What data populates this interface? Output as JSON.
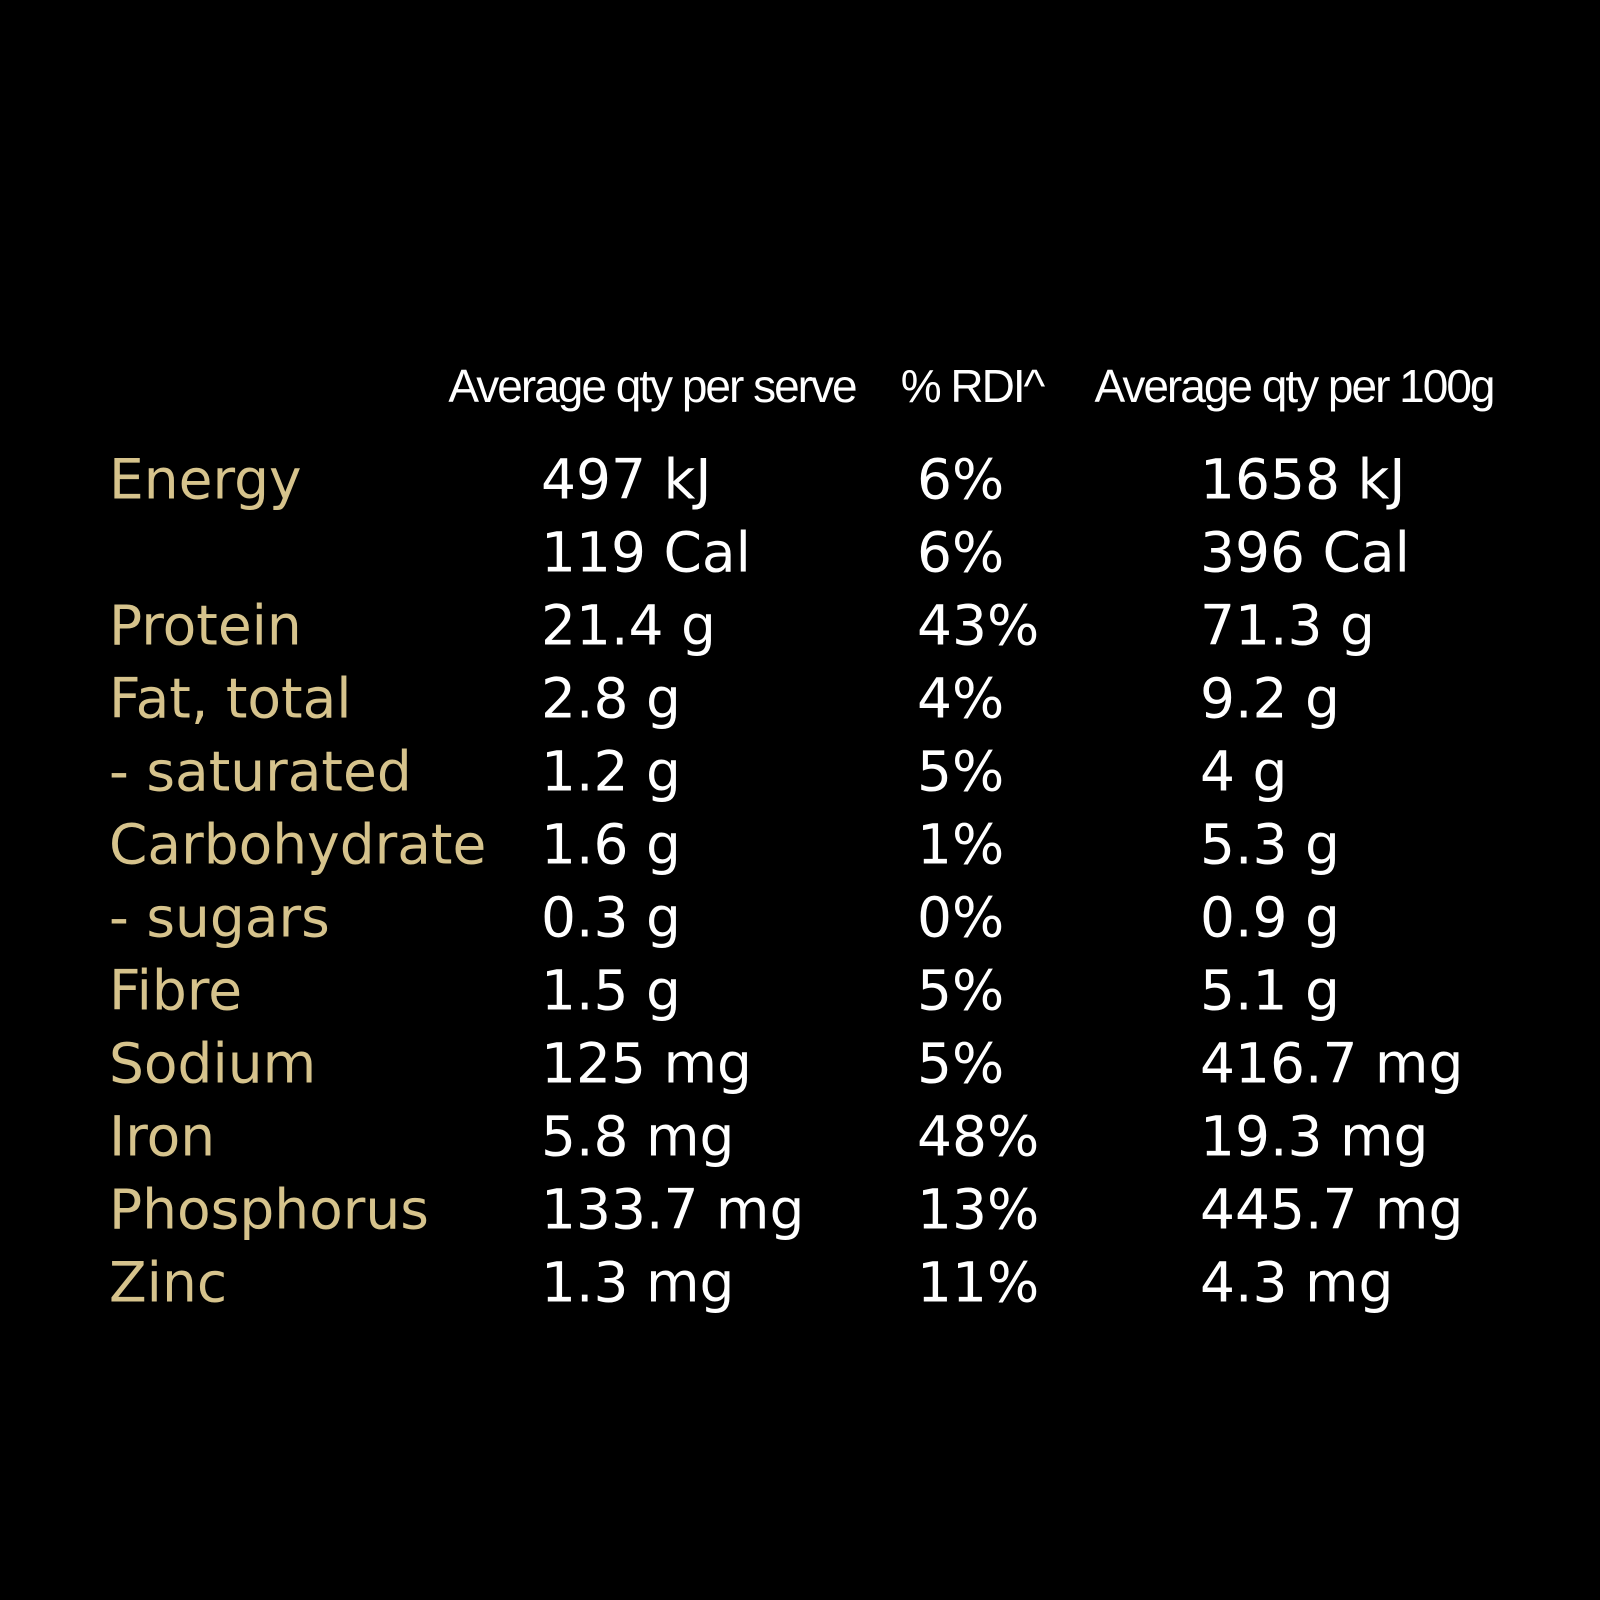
{
  "table": {
    "headers": [
      "Average qty per serve",
      "% RDI^",
      "Average qty per 100g"
    ],
    "rows": [
      {
        "label": "Energy",
        "cells": [
          "497 kJ",
          "6%",
          "1658 kJ"
        ]
      },
      {
        "cells": [
          "119 Cal",
          "6%",
          "396 Cal"
        ]
      },
      {
        "label": "Protein",
        "cells": [
          "21.4 g",
          "43%",
          "71.3 g"
        ]
      },
      {
        "label": "Fat, total",
        "cells": [
          "2.8 g",
          "4%",
          "9.2 g"
        ]
      },
      {
        "label": "- saturated",
        "cells": [
          "1.2 g",
          "5%",
          "4 g"
        ]
      },
      {
        "label": "Carbohydrate",
        "cells": [
          "1.6 g",
          "1%",
          "5.3 g"
        ]
      },
      {
        "label": "- sugars",
        "cells": [
          "0.3 g",
          "0%",
          "0.9 g"
        ]
      },
      {
        "label": "Fibre",
        "cells": [
          "1.5 g",
          "5%",
          "5.1 g"
        ]
      },
      {
        "label": "Sodium",
        "cells": [
          "125 mg",
          "5%",
          "416.7 mg"
        ]
      },
      {
        "label": "Iron",
        "cells": [
          "5.8 mg",
          "48%",
          "19.3 mg"
        ]
      },
      {
        "label": "Phosphorus",
        "cells": [
          "133.7 mg",
          "13%",
          "445.7 mg"
        ]
      },
      {
        "label": "Zinc",
        "cells": [
          "1.3 mg",
          "11%",
          "4.3 mg"
        ]
      }
    ]
  }
}
